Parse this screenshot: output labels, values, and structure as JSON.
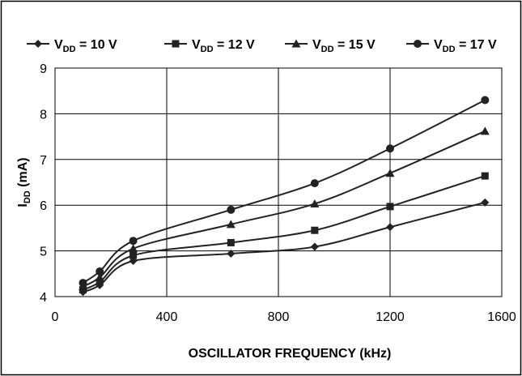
{
  "chart_data": {
    "type": "line",
    "xlabel": "OSCILLATOR FREQUENCY (kHz)",
    "ylabel": {
      "main": "I",
      "sub": "DD",
      "unit": " (mA)"
    },
    "xlim": [
      0,
      1600
    ],
    "ylim": [
      4,
      9
    ],
    "xticks": [
      "0",
      "400",
      "800",
      "1200",
      "1600"
    ],
    "yticks": [
      "4",
      "5",
      "6",
      "7",
      "8",
      "9"
    ],
    "grid": true,
    "legend_position": "top",
    "x": [
      100,
      160,
      280,
      630,
      930,
      1200,
      1540
    ],
    "series": [
      {
        "name": {
          "main": "V",
          "sub": "DD",
          "rest": " = 10 V"
        },
        "marker": "diamond",
        "values": [
          4.1,
          4.25,
          4.78,
          4.94,
          5.09,
          5.52,
          6.06
        ]
      },
      {
        "name": {
          "main": "V",
          "sub": "DD",
          "rest": " = 12 V"
        },
        "marker": "square",
        "values": [
          4.15,
          4.32,
          4.9,
          5.18,
          5.45,
          5.97,
          6.64
        ]
      },
      {
        "name": {
          "main": "V",
          "sub": "DD",
          "rest": " = 15 V"
        },
        "marker": "triangle",
        "values": [
          4.22,
          4.42,
          5.05,
          5.58,
          6.03,
          6.7,
          7.62
        ]
      },
      {
        "name": {
          "main": "V",
          "sub": "DD",
          "rest": " = 17 V"
        },
        "marker": "circle",
        "values": [
          4.3,
          4.55,
          5.22,
          5.9,
          6.48,
          7.24,
          8.3
        ]
      }
    ]
  }
}
